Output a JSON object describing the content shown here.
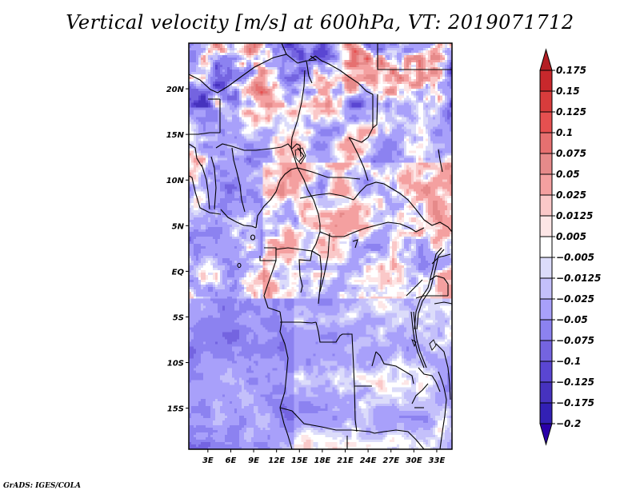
{
  "title": "Vertical velocity [m/s] at 600hPa, VT: 2019071712",
  "credit": "GrADS: IGES/COLA",
  "chart_data": {
    "type": "heatmap",
    "title": "Vertical velocity [m/s] at 600hPa, VT: 2019071712",
    "variable": "Vertical velocity",
    "units": "m/s",
    "level": "600hPa",
    "valid_time": "2019071712",
    "xlabel": "",
    "ylabel": "",
    "x_ticks": [
      "3E",
      "6E",
      "9E",
      "12E",
      "15E",
      "18E",
      "21E",
      "24E",
      "27E",
      "30E",
      "33E"
    ],
    "x_tick_values": [
      3,
      6,
      9,
      12,
      15,
      18,
      21,
      24,
      27,
      30,
      33
    ],
    "y_ticks": [
      "20N",
      "15N",
      "10N",
      "5N",
      "EQ",
      "5S",
      "10S",
      "15S"
    ],
    "y_tick_values": [
      20,
      15,
      10,
      5,
      0,
      -5,
      -10,
      -15
    ],
    "xlim": [
      0.5,
      35
    ],
    "ylim": [
      -19.5,
      25
    ],
    "grid": false,
    "colorbar": {
      "placement": "right",
      "extend": "both",
      "levels": [
        0.175,
        0.15,
        0.125,
        0.1,
        0.075,
        0.05,
        0.025,
        0.0125,
        0.005,
        -0.005,
        -0.0125,
        -0.025,
        -0.05,
        -0.075,
        -0.1,
        -0.125,
        -0.175,
        -0.2
      ],
      "labels": [
        "0.175",
        "0.15",
        "0.125",
        "0.1",
        "0.075",
        "0.05",
        "0.025",
        "0.0125",
        "0.005",
        "−0.005",
        "−0.0125",
        "−0.025",
        "−0.05",
        "−0.075",
        "−0.1",
        "−0.125",
        "−0.175",
        "−0.2"
      ],
      "colors": [
        "#b41e24",
        "#c8282c",
        "#d83c3c",
        "#e65050",
        "#e67070",
        "#e68a8a",
        "#f4a0a0",
        "#fac8c8",
        "#fde6e6",
        "#ffffff",
        "#dcdcfa",
        "#c4c0fa",
        "#a8a0fa",
        "#8c82f0",
        "#7464e0",
        "#5a46d2",
        "#4632be",
        "#3220b4",
        "#2a00a8"
      ],
      "over_color": "#b41e24",
      "under_color": "#2a00a8"
    }
  }
}
